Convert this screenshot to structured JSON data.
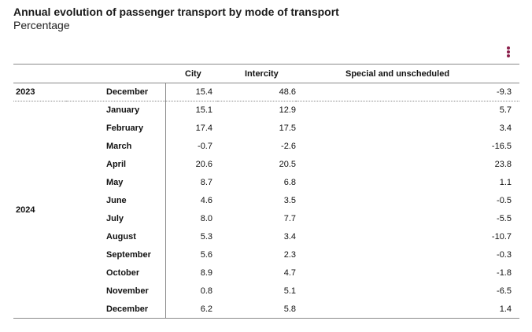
{
  "header": {
    "title": "Annual evolution of passenger transport by mode of transport",
    "subtitle": "Percentage"
  },
  "menu": {
    "icon": "kebab-menu-icon"
  },
  "table": {
    "columns": [
      "",
      "",
      "City",
      "Intercity",
      "Special and unscheduled"
    ],
    "rows": [
      {
        "year": "2023",
        "month": "December",
        "city": "15.4",
        "intercity": "48.6",
        "special": "-9.3"
      },
      {
        "year": "2024",
        "month": "January",
        "city": "15.1",
        "intercity": "12.9",
        "special": "5.7"
      },
      {
        "year": "",
        "month": "February",
        "city": "17.4",
        "intercity": "17.5",
        "special": "3.4"
      },
      {
        "year": "",
        "month": "March",
        "city": "-0.7",
        "intercity": "-2.6",
        "special": "-16.5"
      },
      {
        "year": "",
        "month": "April",
        "city": "20.6",
        "intercity": "20.5",
        "special": "23.8"
      },
      {
        "year": "",
        "month": "May",
        "city": "8.7",
        "intercity": "6.8",
        "special": "1.1"
      },
      {
        "year": "",
        "month": "June",
        "city": "4.6",
        "intercity": "3.5",
        "special": "-0.5"
      },
      {
        "year": "",
        "month": "July",
        "city": "8.0",
        "intercity": "7.7",
        "special": "-5.5"
      },
      {
        "year": "",
        "month": "August",
        "city": "5.3",
        "intercity": "3.4",
        "special": "-10.7"
      },
      {
        "year": "",
        "month": "September",
        "city": "5.6",
        "intercity": "2.3",
        "special": "-0.3"
      },
      {
        "year": "",
        "month": "October",
        "city": "8.9",
        "intercity": "4.7",
        "special": "-1.8"
      },
      {
        "year": "",
        "month": "November",
        "city": "0.8",
        "intercity": "5.1",
        "special": "-6.5"
      },
      {
        "year": "",
        "month": "December",
        "city": "6.2",
        "intercity": "5.8",
        "special": "1.4"
      }
    ]
  }
}
